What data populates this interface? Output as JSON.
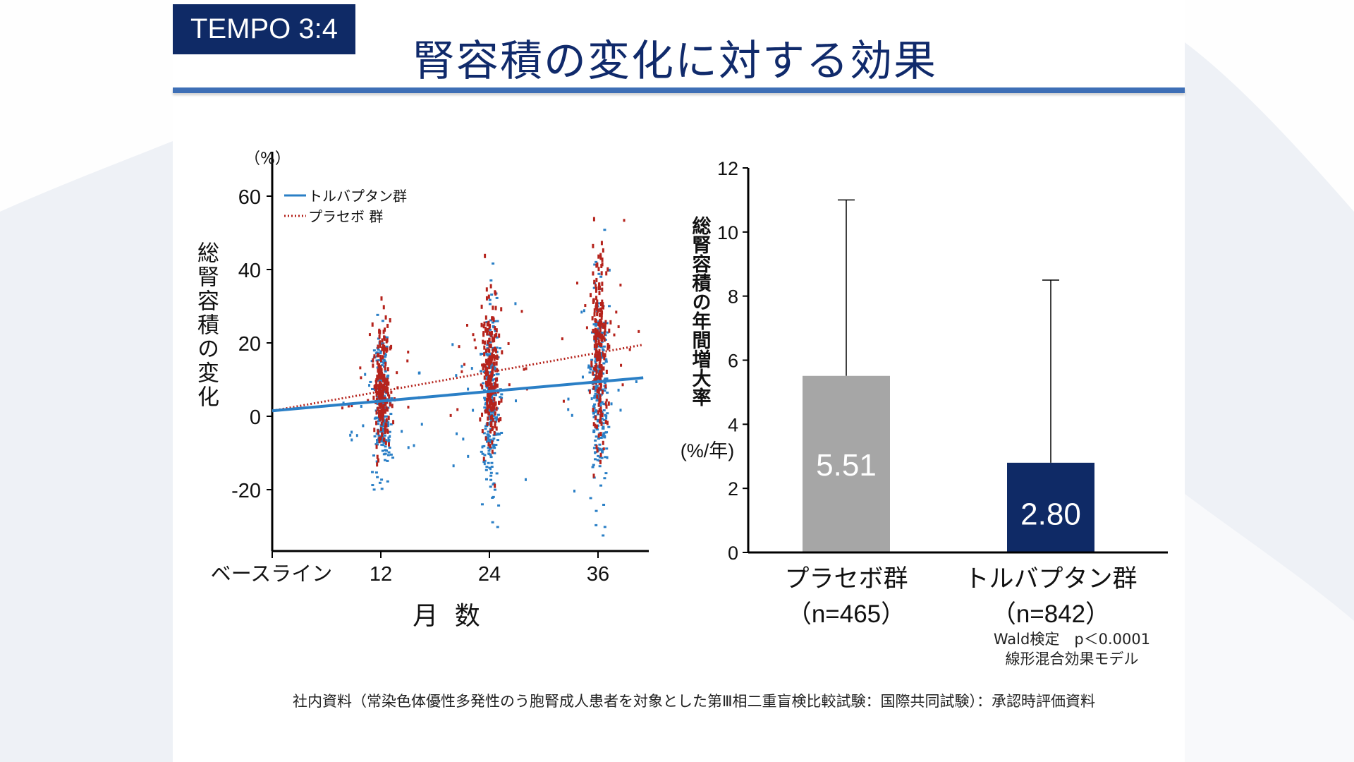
{
  "badge": "TEMPO 3:4",
  "title": "腎容積の変化に対する効果",
  "footnote": "社内資料（常染色体優性多発性のう胞腎成人患者を対象とした第Ⅲ相二重盲検比較試験：国際共同試験）：承認時評価資料",
  "stat_note": {
    "line1": "Wald検定　p＜0.0001",
    "line2": "線形混合効果モデル"
  },
  "colors": {
    "navy": "#0f2a66",
    "blue_line": "#2a7fc6",
    "red_dots": "#b5231c",
    "placebo_bar": "#a6a6a6",
    "tolvaptan_bar": "#0f2a66",
    "title_rule": "#3e6fb6"
  },
  "chart_data": [
    {
      "type": "scatter",
      "y_unit": "（%）",
      "ylabel": "総腎容積の変化",
      "xlabel": "月 数",
      "x_ticks": [
        {
          "x": 0,
          "label": "ベースライン"
        },
        {
          "x": 12,
          "label": "12"
        },
        {
          "x": 24,
          "label": "24"
        },
        {
          "x": 36,
          "label": "36"
        }
      ],
      "y_ticks": [
        "60",
        "40",
        "20",
        "0",
        "-20"
      ],
      "xlim": [
        0,
        42
      ],
      "ylim": [
        -37,
        66
      ],
      "legend": [
        {
          "name": "トルバプタン群",
          "style": "solid",
          "color": "#2a7fc6"
        },
        {
          "name": "プラセボ 群",
          "style": "dotted",
          "color": "#b5231c"
        }
      ],
      "legend_position": "top-left",
      "trend_lines": [
        {
          "name": "トルバプタン群",
          "x": [
            0,
            41
          ],
          "y": [
            1.5,
            10.5
          ]
        },
        {
          "name": "プラセボ 群",
          "x": [
            0,
            41
          ],
          "y": [
            1.5,
            19.5
          ]
        }
      ],
      "clusters": [
        {
          "series": "トルバプタン群",
          "x": 12,
          "y_mean": 3,
          "y_sd": 10,
          "n": 230
        },
        {
          "series": "プラセボ 群",
          "x": 12,
          "y_mean": 7,
          "y_sd": 8,
          "n": 210
        },
        {
          "series": "トルバプタン群",
          "x": 24,
          "y_mean": 4,
          "y_sd": 13,
          "n": 230
        },
        {
          "series": "プラセボ 群",
          "x": 24,
          "y_mean": 13,
          "y_sd": 10,
          "n": 210
        },
        {
          "series": "トルバプタン群",
          "x": 36,
          "y_mean": 7,
          "y_sd": 15,
          "n": 230
        },
        {
          "series": "プラセボ 群",
          "x": 36,
          "y_mean": 20,
          "y_sd": 13,
          "n": 210
        }
      ]
    },
    {
      "type": "bar",
      "categories": [
        "プラセボ群",
        "トルバプタン群"
      ],
      "category_sub": [
        "（n=465）",
        "（n=842）"
      ],
      "values": [
        5.51,
        2.8
      ],
      "value_labels": [
        "5.51",
        "2.80"
      ],
      "error_upper": [
        11.0,
        8.5
      ],
      "ylabel": "総腎容積の年間増大率",
      "ylabel_unit": "(%/年)",
      "ylim": [
        0,
        12
      ],
      "y_ticks": [
        "0",
        "2",
        "4",
        "6",
        "8",
        "10",
        "12"
      ]
    }
  ]
}
